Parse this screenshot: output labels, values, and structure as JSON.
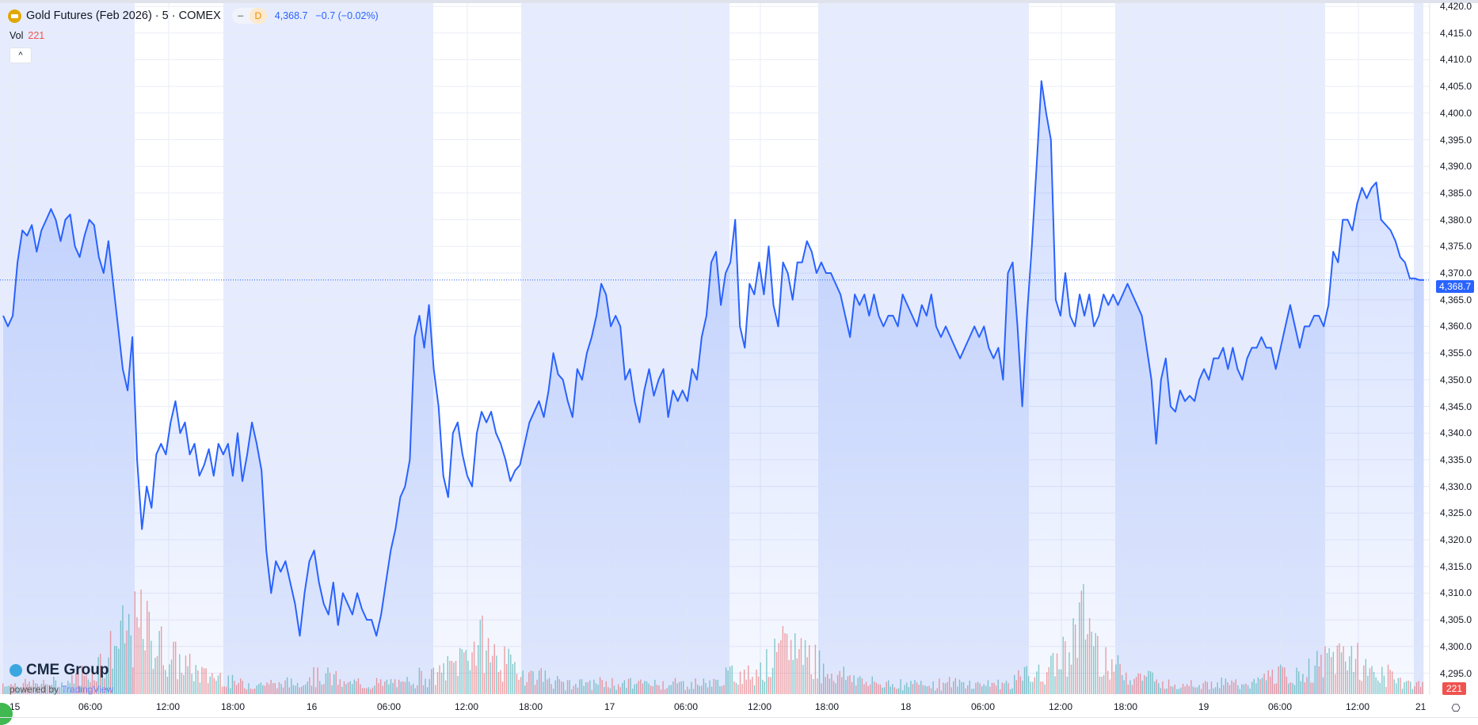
{
  "legend": {
    "symbol_icon": "gold-coin-icon",
    "title": "Gold Futures (Feb 2026) · 5 · COMEX",
    "minus": "−",
    "interval_badge": "D",
    "last": "4,368.7",
    "change": "−0.7 (−0.02%)"
  },
  "volume_legend": {
    "label": "Vol",
    "value": "221"
  },
  "collapse_icon": "^",
  "price_tag": "4,368.7",
  "volume_tag": "221",
  "branding": {
    "logo": "CME Group",
    "powered_by": "powered by",
    "tradingview": "TradingView"
  },
  "settings_icon": "⎔",
  "colors": {
    "line": "#2962ff",
    "up": "#26a69a",
    "down": "#ef5350",
    "session": "#e6ecfd"
  },
  "chart_data": {
    "type": "area",
    "title": "Gold Futures (Feb 2026) · 5 · COMEX",
    "y_ticks": [
      "4,420.0",
      "4,415.0",
      "4,410.0",
      "4,405.0",
      "4,400.0",
      "4,395.0",
      "4,390.0",
      "4,385.0",
      "4,380.0",
      "4,375.0",
      "4,370.0",
      "4,365.0",
      "4,360.0",
      "4,355.0",
      "4,350.0",
      "4,345.0",
      "4,340.0",
      "4,335.0",
      "4,330.0",
      "4,325.0",
      "4,320.0",
      "4,315.0",
      "4,310.0",
      "4,305.0",
      "4,300.0",
      "4,295.0"
    ],
    "ylim": [
      4295,
      4420
    ],
    "x_ticks": [
      "15",
      "06:00",
      "12:00",
      "18:00",
      "16",
      "06:00",
      "12:00",
      "18:00",
      "17",
      "06:00",
      "12:00",
      "18:00",
      "18",
      "06:00",
      "12:00",
      "18:00",
      "19",
      "06:00",
      "12:00",
      "21"
    ],
    "last_price": 4368.7,
    "prices": [
      4362,
      4360,
      4362,
      4372,
      4378,
      4377,
      4379,
      4374,
      4378,
      4380,
      4382,
      4380,
      4376,
      4380,
      4381,
      4375,
      4373,
      4377,
      4380,
      4379,
      4373,
      4370,
      4376,
      4368,
      4360,
      4352,
      4348,
      4358,
      4335,
      4322,
      4330,
      4326,
      4336,
      4338,
      4336,
      4342,
      4346,
      4340,
      4342,
      4336,
      4338,
      4332,
      4334,
      4337,
      4332,
      4338,
      4336,
      4338,
      4332,
      4340,
      4331,
      4336,
      4342,
      4338,
      4333,
      4318,
      4310,
      4316,
      4314,
      4316,
      4312,
      4308,
      4302,
      4310,
      4316,
      4318,
      4312,
      4308,
      4306,
      4312,
      4304,
      4310,
      4308,
      4306,
      4310,
      4307,
      4305,
      4305,
      4302,
      4306,
      4312,
      4318,
      4322,
      4328,
      4330,
      4335,
      4358,
      4362,
      4356,
      4364,
      4352,
      4345,
      4332,
      4328,
      4340,
      4342,
      4336,
      4332,
      4330,
      4340,
      4344,
      4342,
      4344,
      4340,
      4338,
      4335,
      4331,
      4333,
      4334,
      4338,
      4342,
      4344,
      4346,
      4343,
      4348,
      4355,
      4351,
      4350,
      4346,
      4343,
      4352,
      4350,
      4355,
      4358,
      4362,
      4368,
      4366,
      4360,
      4362,
      4360,
      4350,
      4352,
      4346,
      4342,
      4348,
      4352,
      4347,
      4350,
      4352,
      4343,
      4348,
      4346,
      4348,
      4346,
      4352,
      4350,
      4358,
      4362,
      4372,
      4374,
      4364,
      4370,
      4372,
      4380,
      4360,
      4356,
      4368,
      4366,
      4372,
      4366,
      4375,
      4364,
      4360,
      4372,
      4370,
      4365,
      4372,
      4372,
      4376,
      4374,
      4370,
      4372,
      4370,
      4370,
      4368,
      4366,
      4362,
      4358,
      4366,
      4364,
      4366,
      4362,
      4366,
      4362,
      4360,
      4362,
      4362,
      4360,
      4366,
      4364,
      4362,
      4360,
      4364,
      4362,
      4366,
      4360,
      4358,
      4360,
      4358,
      4356,
      4354,
      4356,
      4358,
      4360,
      4358,
      4360,
      4356,
      4354,
      4356,
      4350,
      4370,
      4372,
      4360,
      4345,
      4362,
      4375,
      4390,
      4406,
      4400,
      4395,
      4365,
      4362,
      4370,
      4362,
      4360,
      4366,
      4362,
      4366,
      4360,
      4362,
      4366,
      4364,
      4366,
      4364,
      4366,
      4368,
      4366,
      4364,
      4362,
      4356,
      4350,
      4338,
      4350,
      4354,
      4345,
      4344,
      4348,
      4346,
      4347,
      4346,
      4350,
      4352,
      4350,
      4354,
      4354,
      4356,
      4352,
      4356,
      4352,
      4350,
      4354,
      4356,
      4356,
      4358,
      4356,
      4356,
      4352,
      4356,
      4360,
      4364,
      4360,
      4356,
      4360,
      4360,
      4362,
      4362,
      4360,
      4364,
      4374,
      4372,
      4380,
      4380,
      4378,
      4383,
      4386,
      4384,
      4386,
      4387,
      4380,
      4379,
      4378,
      4376,
      4373,
      4372,
      4369,
      4369,
      4368.7,
      4368.7
    ],
    "volume_profile": [
      1,
      1,
      1,
      1,
      1,
      2,
      3,
      5,
      7,
      8,
      6,
      4,
      3,
      2,
      2,
      1,
      1,
      1,
      1,
      1,
      2,
      2,
      1,
      1,
      1,
      1,
      1,
      2,
      2,
      3,
      5,
      6,
      4,
      3,
      2,
      2,
      1,
      1,
      1,
      1,
      1,
      1,
      1,
      1,
      1,
      1,
      1,
      2,
      2,
      3,
      4,
      6,
      5,
      3,
      2,
      2,
      1,
      1,
      1,
      1,
      1,
      1,
      1,
      1,
      1,
      1,
      2,
      2,
      3,
      6,
      9,
      5,
      3,
      2,
      2,
      1,
      1,
      1,
      1,
      1,
      1,
      1,
      2,
      2,
      2,
      3,
      4,
      5,
      3,
      2,
      2,
      1,
      1
    ]
  }
}
